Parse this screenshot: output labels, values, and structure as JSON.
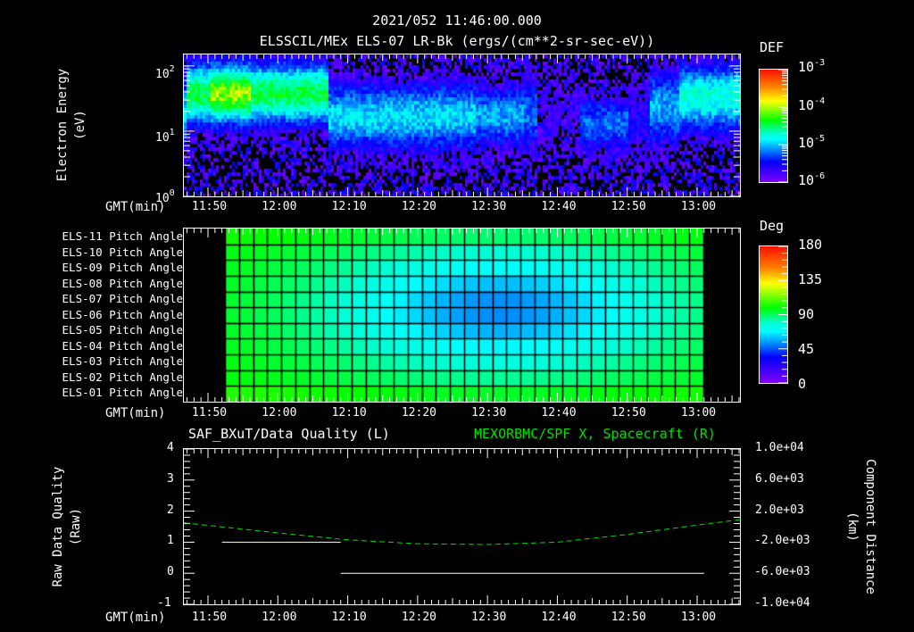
{
  "header": {
    "timestamp": "2021/052 11:46:00.000",
    "subtitle": "ELSSCIL/MEx ELS-07 LR-Bk  (ergs/(cm**2-sr-sec-eV))"
  },
  "time_axis": {
    "label": "GMT(min)",
    "ticks": [
      "11:50",
      "12:00",
      "12:10",
      "12:20",
      "12:30",
      "12:40",
      "12:50",
      "13:00"
    ]
  },
  "panel_spectrogram": {
    "ylabel_line1": "Electron Energy",
    "ylabel_line2": "(eV)",
    "yticks": [
      {
        "base": "10",
        "exp": "2"
      },
      {
        "base": "10",
        "exp": "1"
      },
      {
        "base": "10",
        "exp": "0"
      }
    ],
    "colorbar": {
      "title": "DEF",
      "labels": [
        {
          "base": "10",
          "exp": "-3"
        },
        {
          "base": "10",
          "exp": "-4"
        },
        {
          "base": "10",
          "exp": "-5"
        },
        {
          "base": "10",
          "exp": "-6"
        }
      ]
    }
  },
  "panel_pitch": {
    "rows": [
      "ELS-11 Pitch Angle",
      "ELS-10 Pitch Angle",
      "ELS-09 Pitch Angle",
      "ELS-08 Pitch Angle",
      "ELS-07 Pitch Angle",
      "ELS-06 Pitch Angle",
      "ELS-05 Pitch Angle",
      "ELS-04 Pitch Angle",
      "ELS-03 Pitch Angle",
      "ELS-02 Pitch Angle",
      "ELS-01 Pitch Angle"
    ],
    "colorbar": {
      "title": "Deg",
      "labels": [
        "180",
        "135",
        "90",
        "45",
        "0"
      ]
    }
  },
  "panel_line": {
    "left_title": "SAF_BXuT/Data Quality (L)",
    "right_title": "MEXORBMC/SPF X, Spacecraft (R)",
    "right_title_color": "#00e000",
    "ylabel_left_line1": "Raw Data Quality",
    "ylabel_left_line2": "(Raw)",
    "ylabel_right_line1": "Component Distance",
    "ylabel_right_line2": "(km)",
    "yticks_left": [
      "4",
      "3",
      "2",
      "1",
      "0",
      "-1"
    ],
    "yticks_right": [
      "1.0e+04",
      "6.0e+03",
      "2.0e+03",
      "-2.0e+03",
      "-6.0e+03",
      "-1.0e+04"
    ]
  },
  "chart_data": [
    {
      "type": "heatmap",
      "title": "ELSSCIL/MEx ELS-07 LR-Bk (ergs/(cm**2-sr-sec-eV))",
      "xlabel": "GMT(min)",
      "ylabel": "Electron Energy (eV)",
      "x_range": [
        "11:46",
        "13:07"
      ],
      "ylim": [
        1,
        150
      ],
      "yscale": "log",
      "colorbar": {
        "label": "DEF",
        "range": [
          1e-06,
          0.001
        ],
        "scale": "log"
      },
      "features": [
        {
          "time": "11:49-12:06",
          "energy_eV": "15-100",
          "level": "~2e-4 (peak yellow ~11:52)"
        },
        {
          "time": "12:07-12:28",
          "energy_eV": "8-60",
          "level": "~3e-5"
        },
        {
          "time": "12:28-12:34",
          "energy_eV": "6-60",
          "level": "~2e-5"
        },
        {
          "time": "12:35-12:44",
          "energy_eV": "-",
          "level": "mostly below 1e-6 (gap)"
        },
        {
          "time": "12:53-13:07",
          "energy_eV": "10-100",
          "level": "~5e-5 to 1e-4"
        }
      ]
    },
    {
      "type": "heatmap",
      "title": "ELS Pitch Angle",
      "xlabel": "GMT(min)",
      "categories": [
        "ELS-11",
        "ELS-10",
        "ELS-09",
        "ELS-08",
        "ELS-07",
        "ELS-06",
        "ELS-05",
        "ELS-04",
        "ELS-03",
        "ELS-02",
        "ELS-01"
      ],
      "x_range": [
        "11:52",
        "13:01"
      ],
      "colorbar": {
        "label": "Deg",
        "range": [
          0,
          180
        ]
      },
      "description": "Values ~100 deg at edges, minimum ~55 deg near ELS-07/06 around 12:30-12:35"
    },
    {
      "type": "line",
      "xlabel": "GMT(min)",
      "x_ticks": [
        "11:50",
        "12:00",
        "12:10",
        "12:20",
        "12:30",
        "12:40",
        "12:50",
        "13:00"
      ],
      "series": [
        {
          "name": "SAF_BXuT/Data Quality (L)",
          "axis": "left",
          "ylim": [
            -1,
            4
          ],
          "points": [
            [
              "11:52",
              1
            ],
            [
              "12:09",
              1
            ],
            [
              "12:09",
              0
            ],
            [
              "13:01",
              0
            ]
          ]
        },
        {
          "name": "MEXORBMC/SPF X, Spacecraft (R)",
          "axis": "right",
          "ylim": [
            -10000,
            10000
          ],
          "style": "dashed",
          "color": "#00e000",
          "points": [
            [
              "11:46",
              500
            ],
            [
              "12:00",
              -800
            ],
            [
              "12:10",
              -1700
            ],
            [
              "12:20",
              -2200
            ],
            [
              "12:30",
              -2300
            ],
            [
              "12:40",
              -2000
            ],
            [
              "12:50",
              -1000
            ],
            [
              "13:00",
              200
            ],
            [
              "13:07",
              900
            ]
          ]
        }
      ]
    }
  ]
}
